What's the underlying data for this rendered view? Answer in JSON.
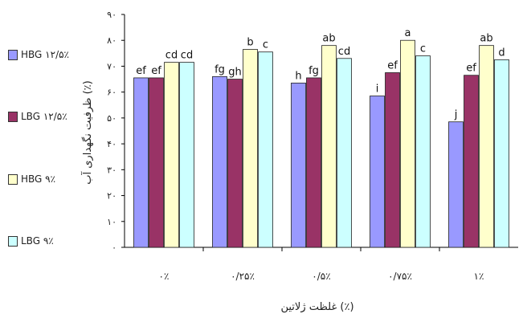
{
  "chart_data": {
    "type": "bar",
    "xlabel": "غلظت ژلاتین (٪)",
    "ylabel": "ظرفیت نگهداری آب (٪)",
    "ylim": [
      0,
      90
    ],
    "yticks": [
      "٠",
      "١٠",
      "٢٠",
      "٣٠",
      "۴٠",
      "۵٠",
      "۶٠",
      "٧٠",
      "٨٠",
      "٩٠"
    ],
    "categories": [
      "٠٪",
      "٠/٢۵٪",
      "٠/۵٪",
      "٠/٧۵٪",
      "١٪"
    ],
    "grid": false,
    "legend_position": "left",
    "series": [
      {
        "name": "HBG ١٢/۵٪",
        "color": "#9999FF",
        "values": [
          65.5,
          66,
          63.5,
          58.5,
          48.5
        ],
        "labels": [
          "ef",
          "fg",
          "h",
          "i",
          "j"
        ]
      },
      {
        "name": "LBG ١٢/۵٪",
        "color": "#993366",
        "values": [
          65.5,
          65,
          65.5,
          67.5,
          66.5
        ],
        "labels": [
          "ef",
          "gh",
          "fg",
          "ef",
          "ef"
        ]
      },
      {
        "name": "HBG ٩٪",
        "color": "#FFFFCC",
        "values": [
          71.5,
          76.5,
          78,
          80,
          78
        ],
        "labels": [
          "cd",
          "b",
          "ab",
          "a",
          "ab"
        ]
      },
      {
        "name": "LBG ٩٪",
        "color": "#CCFFFF",
        "values": [
          71.5,
          75.5,
          73,
          74,
          72.5
        ],
        "labels": [
          "cd",
          "c",
          "cd",
          "c",
          "d"
        ]
      }
    ]
  }
}
